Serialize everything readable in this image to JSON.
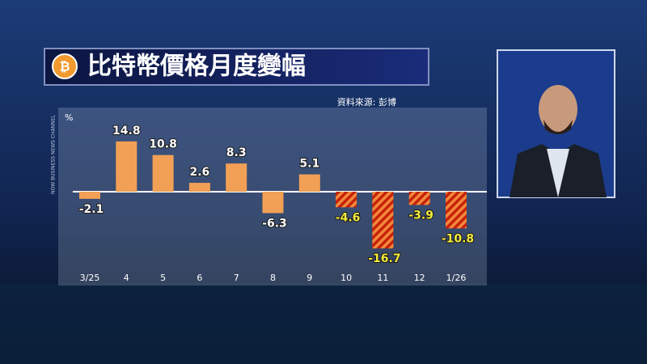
{
  "chart_data": {
    "type": "bar",
    "title": "比特幣價格月度變幅",
    "source": "資料來源: 彭博",
    "unit": "%",
    "categories": [
      "3/25",
      "4",
      "5",
      "6",
      "7",
      "8",
      "9",
      "10",
      "11",
      "12",
      "1/26"
    ],
    "values": [
      -2.1,
      14.8,
      10.8,
      2.6,
      8.3,
      -6.3,
      5.1,
      -4.6,
      -16.7,
      -3.9,
      -10.8
    ],
    "colors": [
      "#f2a056",
      "#f2a056",
      "#f2a056",
      "#f2a056",
      "#f2a056",
      "#f2a056",
      "#f2a056",
      "#f08a3a",
      "#f08a3a",
      "#f08a3a",
      "#f08a3a"
    ],
    "hatched": [
      false,
      false,
      false,
      false,
      false,
      false,
      false,
      true,
      true,
      true,
      true
    ],
    "label_colors": [
      "#ffffff",
      "#ffffff",
      "#ffffff",
      "#ffffff",
      "#ffffff",
      "#ffffff",
      "#ffffff",
      "#f4ec3c",
      "#f4ec3c",
      "#f4ec3c",
      "#f4ec3c"
    ],
    "ylim": [
      -22,
      22
    ]
  }
}
